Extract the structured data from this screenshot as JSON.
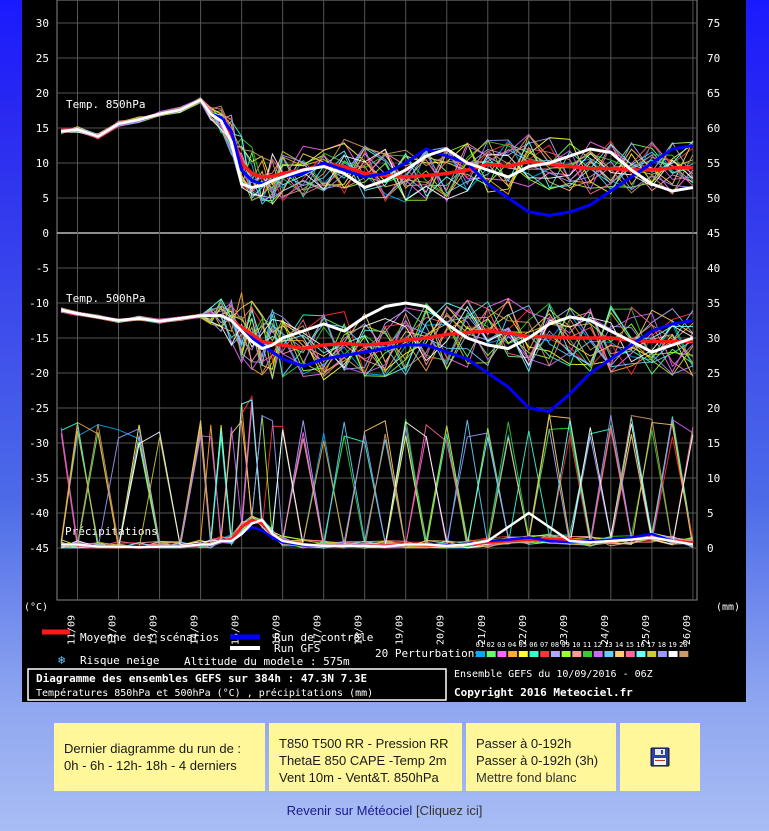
{
  "chart_data": {
    "type": "line",
    "left_axis_unit": "(°C)",
    "right_axis_unit": "(mm)",
    "left_ticks": [
      30,
      25,
      20,
      15,
      10,
      5,
      0,
      -5,
      -10,
      -15,
      -20,
      -25,
      -30,
      -35,
      -40,
      -45
    ],
    "right_ticks": [
      75,
      70,
      65,
      60,
      55,
      50,
      45,
      40,
      35,
      30,
      25,
      20,
      15,
      10,
      5,
      0
    ],
    "x_labels": [
      "11/09",
      "12/09",
      "13/09",
      "14/09",
      "15/09",
      "16/09",
      "17/09",
      "18/09",
      "19/09",
      "20/09",
      "21/09",
      "22/09",
      "23/09",
      "24/09",
      "25/09",
      "26/09"
    ],
    "panels": {
      "t850": {
        "label": "Temp. 850hPa",
        "ylim": [
          0,
          20
        ]
      },
      "t500": {
        "label": "Temp. 500hPa",
        "ylim": [
          -45,
          -5
        ]
      },
      "precip": {
        "label": "Précipitations",
        "ylim": [
          0,
          40
        ]
      }
    },
    "x_days": [
      10.6,
      11.0,
      11.5,
      12.0,
      12.5,
      13.0,
      13.5,
      14.0,
      14.25,
      14.5,
      14.75,
      15.0,
      15.25,
      15.5,
      15.75,
      16.0,
      16.5,
      17.0,
      17.5,
      18.0,
      18.5,
      19.0,
      19.5,
      20.0,
      20.5,
      21.0,
      21.5,
      22.0,
      22.5,
      23.0,
      23.5,
      24.0,
      24.5,
      25.0,
      25.5,
      26.0
    ],
    "series": [
      {
        "name": "Moyenne des scénarios",
        "color": "#ff1a1a",
        "t850": [
          14.5,
          14.8,
          13.8,
          15.6,
          16.2,
          17.0,
          17.6,
          19.0,
          17.0,
          16.2,
          14.0,
          10.0,
          8.5,
          8.0,
          8.1,
          8.5,
          9.0,
          9.8,
          9.5,
          8.5,
          8.2,
          8.0,
          8.2,
          8.5,
          9.0,
          9.8,
          9.5,
          10.2,
          9.8,
          9.5,
          9.2,
          9.2,
          9.0,
          9.0,
          9.3,
          9.3
        ],
        "t500": [
          -11.0,
          -11.5,
          -12.0,
          -12.5,
          -12.2,
          -12.6,
          -12.2,
          -11.8,
          -11.8,
          -11.8,
          -12.5,
          -13.5,
          -14.5,
          -15.5,
          -15.8,
          -16.0,
          -16.5,
          -16.0,
          -15.8,
          -16.0,
          -15.8,
          -15.3,
          -15.0,
          -14.5,
          -14.2,
          -14.0,
          -14.3,
          -14.8,
          -14.8,
          -15.0,
          -15.0,
          -15.0,
          -15.3,
          -15.5,
          -15.5,
          -15.5
        ],
        "precip": [
          0.5,
          0.5,
          0.2,
          0.2,
          0.1,
          0.2,
          0.2,
          0.5,
          0.5,
          1.0,
          1.2,
          3.0,
          4.0,
          3.5,
          2.0,
          1.0,
          0.5,
          0.3,
          0.3,
          0.3,
          0.3,
          0.5,
          0.4,
          0.4,
          0.5,
          0.8,
          1.0,
          1.2,
          1.3,
          1.2,
          1.0,
          1.0,
          1.2,
          1.5,
          1.0,
          0.8
        ]
      },
      {
        "name": "Run de contrôle",
        "color": "#0000ff",
        "t850": [
          14.5,
          14.8,
          13.8,
          15.6,
          16.2,
          17.0,
          17.6,
          19.0,
          17.0,
          16.5,
          14.5,
          9.0,
          7.5,
          7.0,
          7.5,
          8.0,
          8.5,
          10.0,
          9.0,
          8.0,
          8.5,
          10.0,
          12.0,
          11.0,
          10.0,
          7.0,
          5.0,
          3.0,
          2.5,
          3.0,
          4.0,
          6.0,
          8.0,
          10.0,
          12.0,
          12.5
        ],
        "t500": [
          -11.0,
          -11.5,
          -12.0,
          -12.5,
          -12.2,
          -12.6,
          -12.2,
          -11.8,
          -11.8,
          -11.8,
          -12.5,
          -14.0,
          -15.0,
          -16.0,
          -17.0,
          -18.0,
          -19.0,
          -18.0,
          -17.5,
          -17.0,
          -16.5,
          -16.0,
          -16.0,
          -17.0,
          -18.0,
          -20.0,
          -22.0,
          -25.0,
          -25.5,
          -23.0,
          -20.0,
          -18.0,
          -16.0,
          -14.0,
          -13.0,
          -12.5
        ],
        "precip": [
          0.5,
          0.5,
          0.2,
          0.2,
          0.1,
          0.2,
          0.2,
          0.5,
          0.5,
          1.0,
          1.0,
          2.0,
          3.0,
          2.5,
          1.5,
          0.8,
          0.4,
          0.3,
          0.3,
          0.3,
          0.2,
          0.5,
          0.5,
          0.4,
          0.6,
          1.0,
          1.2,
          1.5,
          1.0,
          0.8,
          1.0,
          1.2,
          1.5,
          2.0,
          1.0,
          0.5
        ]
      },
      {
        "name": "Run GFS",
        "color": "#ffffff",
        "t850": [
          14.5,
          14.8,
          13.8,
          15.6,
          16.2,
          17.0,
          17.6,
          19.0,
          17.0,
          16.0,
          13.0,
          7.0,
          6.5,
          6.8,
          7.5,
          8.0,
          9.0,
          9.5,
          8.5,
          6.5,
          7.5,
          9.0,
          11.0,
          12.0,
          10.0,
          9.0,
          8.0,
          9.5,
          10.0,
          11.0,
          12.0,
          11.5,
          9.0,
          7.0,
          6.0,
          6.5
        ],
        "t500": [
          -11.0,
          -11.5,
          -12.0,
          -12.5,
          -12.2,
          -12.6,
          -12.2,
          -11.8,
          -11.8,
          -11.8,
          -12.5,
          -14.0,
          -15.5,
          -16.5,
          -16.0,
          -15.0,
          -14.0,
          -13.0,
          -14.0,
          -12.0,
          -10.5,
          -10.0,
          -10.5,
          -13.0,
          -15.0,
          -16.0,
          -16.5,
          -15.0,
          -13.0,
          -12.0,
          -12.5,
          -14.0,
          -15.5,
          -17.0,
          -16.0,
          -15.0
        ],
        "precip": [
          0.5,
          0.5,
          0.2,
          0.2,
          0.1,
          0.2,
          0.2,
          0.5,
          0.5,
          1.0,
          1.0,
          2.0,
          3.5,
          4.0,
          2.0,
          1.0,
          0.5,
          0.3,
          0.3,
          0.3,
          0.2,
          0.5,
          0.5,
          0.3,
          0.5,
          1.0,
          3.0,
          5.0,
          3.0,
          1.0,
          0.8,
          1.0,
          1.2,
          1.5,
          1.0,
          0.5
        ]
      }
    ],
    "perturbation_colors": [
      "#00aaff",
      "#66ff66",
      "#ff66ff",
      "#ffaa33",
      "#ffff33",
      "#33ffcc",
      "#ff3333",
      "#aaaaff",
      "#99ff33",
      "#ff9999",
      "#33cc33",
      "#cc66ff",
      "#66ccff",
      "#ffcc66",
      "#ff6699",
      "#66ffff",
      "#cccc33",
      "#9999ff",
      "#ffffff",
      "#cc9966"
    ],
    "perturbation_labels": [
      "01",
      "02",
      "03",
      "04",
      "05",
      "06",
      "07",
      "08",
      "09",
      "10",
      "11",
      "12",
      "13",
      "14",
      "15",
      "16",
      "17",
      "18",
      "19",
      "20"
    ]
  },
  "legend": {
    "mean": "Moyenne des scénarios",
    "control": "Run de contrôle",
    "gfs": "Run GFS",
    "snow": "Risque neige",
    "altitude": "Altitude du modele : 575m",
    "perturbations": "20 Perturbations"
  },
  "caption": {
    "title": "Diagramme des ensembles GEFS sur 384h : 47.3N 7.3E",
    "subtitle": "Températures 850hPa et 500hPa (°C) , précipitations (mm)",
    "ensemble": "Ensemble GEFS du 10/09/2016 - 06Z",
    "copyright": "Copyright 2016 Meteociel.fr"
  },
  "nav": {
    "box1": [
      "Dernier diagramme du run de :",
      "0h - 6h - 12h- 18h - 4 derniers"
    ],
    "box2": [
      "T850 T500 RR - Pression RR",
      "ThetaE 850 CAPE -Temp 2m",
      "Vent 10m - Vent&T. 850hPa"
    ],
    "box3": [
      "Passer à 0-192h",
      "Passer à 0-192h (3h)",
      "Mettre fond blanc"
    ],
    "save_icon": "floppy-disk-icon"
  },
  "back": {
    "link": "Revenir sur Météociel",
    "hint": "[Cliquez ici]"
  }
}
